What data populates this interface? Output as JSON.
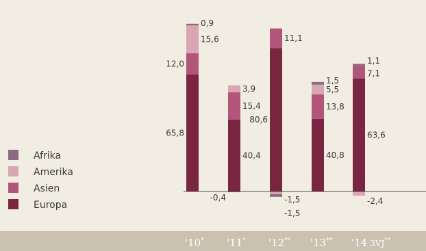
{
  "chart_data": {
    "type": "bar",
    "stacked": true,
    "categories": [
      {
        "label": "'10",
        "sup": "*",
        "suffix": ""
      },
      {
        "label": "'11",
        "sup": "*",
        "suffix": ""
      },
      {
        "label": "'12",
        "sup": "**",
        "suffix": ""
      },
      {
        "label": "'13",
        "sup": "**",
        "suffix": ""
      },
      {
        "label": "'14",
        "sup": "**",
        "suffix": "3VJ"
      }
    ],
    "series": [
      {
        "name": "Europa",
        "color": "#7a2640",
        "values": [
          65.8,
          40.4,
          80.6,
          40.8,
          63.6
        ]
      },
      {
        "name": "Asien",
        "color": "#b1567a",
        "values": [
          12.0,
          15.4,
          11.1,
          13.8,
          7.1
        ]
      },
      {
        "name": "Amerika",
        "color": "#d9a6b4",
        "values": [
          15.6,
          3.9,
          -1.5,
          5.5,
          -2.4
        ]
      },
      {
        "name": "Afrika",
        "color": "#8d6a80",
        "values": [
          0.9,
          -0.4,
          -1.5,
          1.5,
          1.1
        ]
      }
    ],
    "labels": [
      [
        "65,8",
        "12,0",
        "15,6",
        "0,9"
      ],
      [
        "40,4",
        "15,4",
        "3,9",
        "-0,4"
      ],
      [
        "80,6",
        "11,1",
        "-1,5",
        "-1,5"
      ],
      [
        "40,8",
        "13,8",
        "5,5",
        "1,5"
      ],
      [
        "63,6",
        "7,1",
        "-2,4",
        "1,1"
      ]
    ],
    "legend": {
      "placement": "left",
      "items": [
        {
          "name": "Afrika",
          "color": "#8d6a80"
        },
        {
          "name": "Amerika",
          "color": "#d9a6b4"
        },
        {
          "name": "Asien",
          "color": "#b1567a"
        },
        {
          "name": "Europa",
          "color": "#7a2640"
        }
      ]
    },
    "ylim": [
      -5,
      95
    ],
    "grid": false
  }
}
